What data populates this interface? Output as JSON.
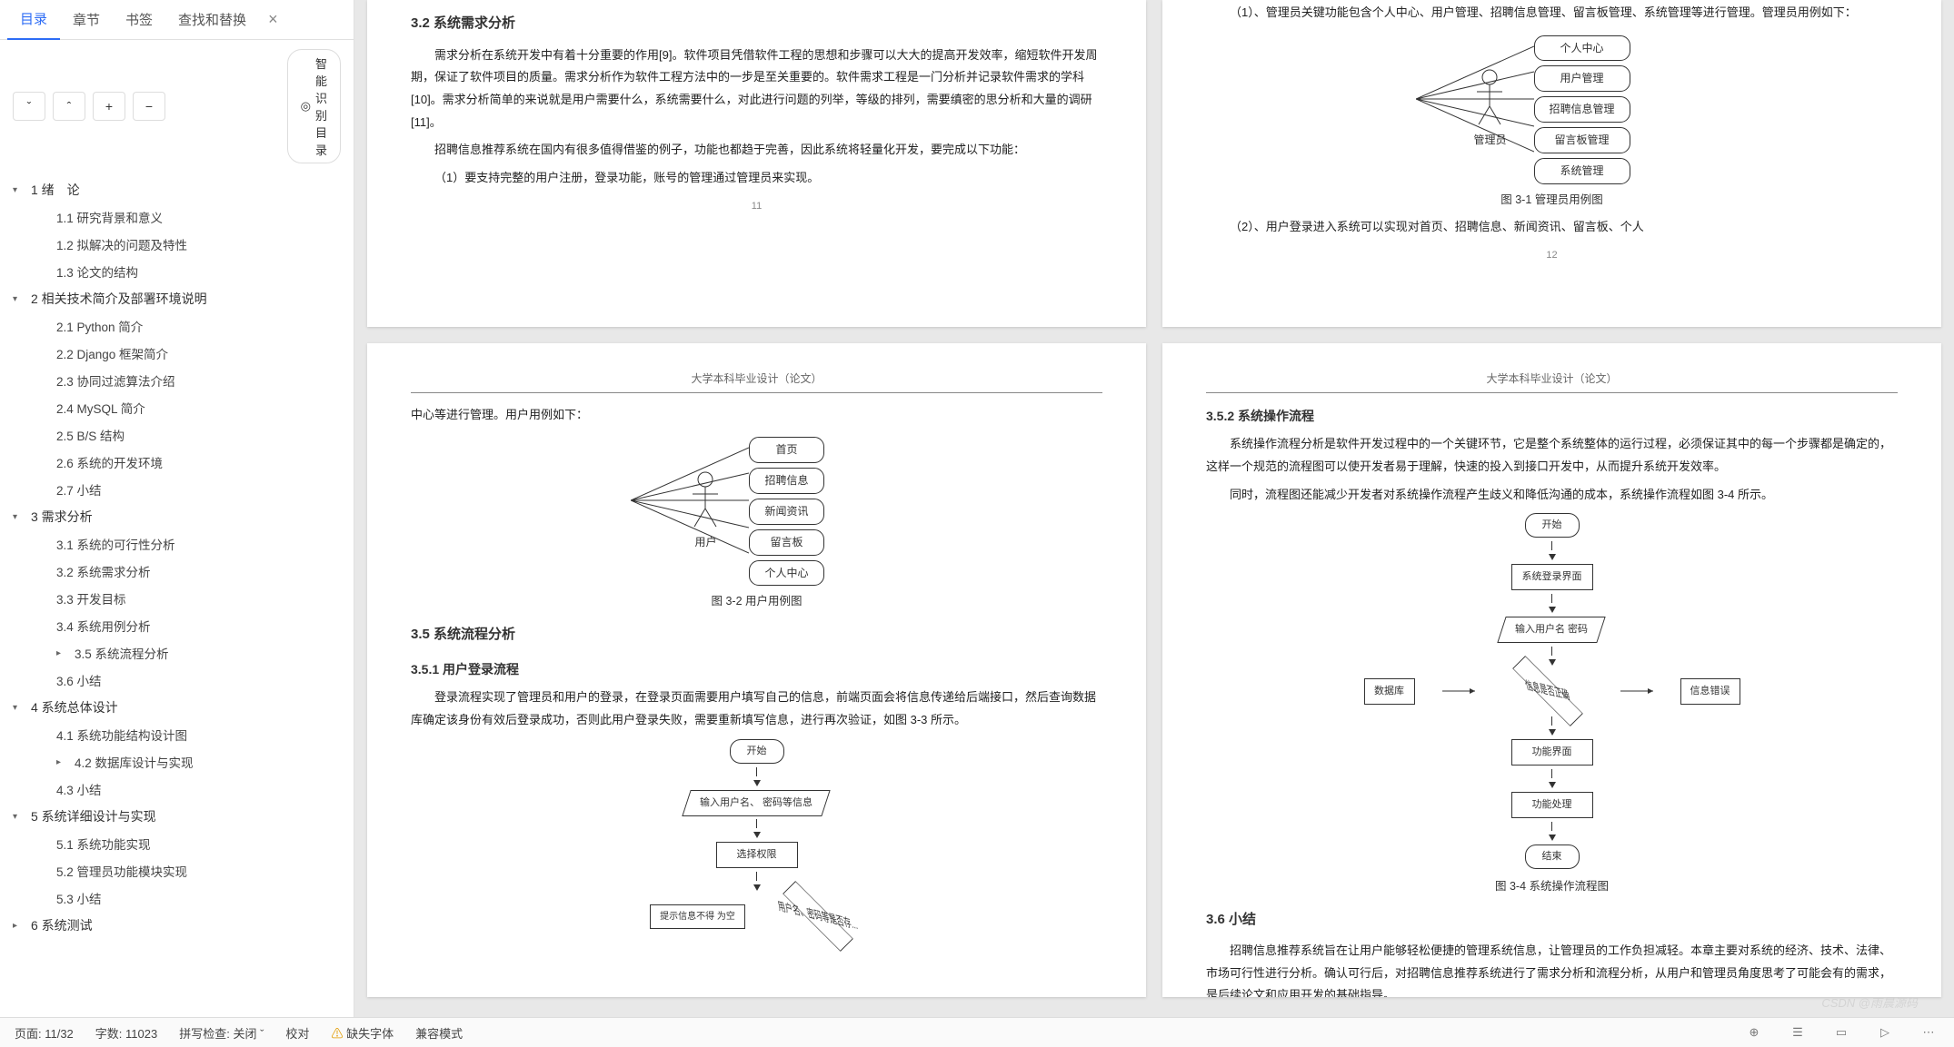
{
  "tabs": {
    "t0": "目录",
    "t1": "章节",
    "t2": "书签",
    "t3": "查找和替换"
  },
  "toolbar": {
    "smart": "智能识别目录"
  },
  "toc": [
    {
      "lvl": 1,
      "exp": true,
      "label": "1 绪　论"
    },
    {
      "lvl": 2,
      "label": "1.1 研究背景和意义"
    },
    {
      "lvl": 2,
      "label": "1.2 拟解决的问题及特性"
    },
    {
      "lvl": 2,
      "label": "1.3 论文的结构"
    },
    {
      "lvl": 1,
      "exp": true,
      "label": "2 相关技术简介及部署环境说明"
    },
    {
      "lvl": 2,
      "label": "2.1 Python 简介"
    },
    {
      "lvl": 2,
      "label": "2.2 Django 框架简介"
    },
    {
      "lvl": 2,
      "label": "2.3 协同过滤算法介绍"
    },
    {
      "lvl": 2,
      "label": "2.4 MySQL 简介"
    },
    {
      "lvl": 2,
      "label": "2.5 B/S 结构"
    },
    {
      "lvl": 2,
      "label": "2.6 系统的开发环境"
    },
    {
      "lvl": 2,
      "label": "2.7 小结"
    },
    {
      "lvl": 1,
      "exp": true,
      "label": "3 需求分析"
    },
    {
      "lvl": 2,
      "label": "3.1 系统的可行性分析"
    },
    {
      "lvl": 2,
      "label": "3.2 系统需求分析"
    },
    {
      "lvl": 2,
      "label": "3.3 开发目标"
    },
    {
      "lvl": 2,
      "label": "3.4 系统用例分析"
    },
    {
      "lvl": 2,
      "exp": false,
      "label": "3.5 系统流程分析"
    },
    {
      "lvl": 2,
      "label": "3.6 小结"
    },
    {
      "lvl": 1,
      "exp": true,
      "label": "4 系统总体设计"
    },
    {
      "lvl": 2,
      "label": "4.1 系统功能结构设计图"
    },
    {
      "lvl": 2,
      "exp": false,
      "label": "4.2 数据库设计与实现"
    },
    {
      "lvl": 2,
      "label": "4.3 小结"
    },
    {
      "lvl": 1,
      "exp": true,
      "label": "5 系统详细设计与实现"
    },
    {
      "lvl": 2,
      "label": "5.1 系统功能实现"
    },
    {
      "lvl": 2,
      "label": "5.2 管理员功能模块实现"
    },
    {
      "lvl": 2,
      "label": "5.3 小结"
    },
    {
      "lvl": 1,
      "exp": false,
      "label": "6 系统测试"
    }
  ],
  "pageHeader": "大学本科毕业设计（论文）",
  "p11": {
    "h": "3.2 系统需求分析",
    "para1": "需求分析在系统开发中有着十分重要的作用[9]。软件项目凭借软件工程的思想和步骤可以大大的提高开发效率，缩短软件开发周期，保证了软件项目的质量。需求分析作为软件工程方法中的一步是至关重要的。软件需求工程是一门分析并记录软件需求的学科[10]。需求分析简单的来说就是用户需要什么，系统需要什么，对此进行问题的列举，等级的排列，需要缜密的思分析和大量的调研[11]。",
    "para2": "招聘信息推荐系统在国内有很多值得借鉴的例子，功能也都趋于完善，因此系统将轻量化开发，要完成以下功能：",
    "para3": "（1）要支持完整的用户注册，登录功能，账号的管理通过管理员来实现。",
    "pnum": "11"
  },
  "p12": {
    "para1": "（1）、管理员关键功能包含个人中心、用户管理、招聘信息管理、留言板管理、系统管理等进行管理。管理员用例如下：",
    "actor": "管理员",
    "cases": [
      "个人中心",
      "用户管理",
      "招聘信息管理",
      "留言板管理",
      "系统管理"
    ],
    "figcap": "图 3-1 管理员用例图",
    "para2": "（2）、用户登录进入系统可以实现对首页、招聘信息、新闻资讯、留言板、个人",
    "pnum": "12"
  },
  "p13": {
    "intro": "中心等进行管理。用户用例如下：",
    "actor": "用户",
    "cases": [
      "首页",
      "招聘信息",
      "新闻资讯",
      "留言板",
      "个人中心"
    ],
    "figcap": "图 3-2 用户用例图",
    "h35": "3.5 系统流程分析",
    "h351": "3.5.1 用户登录流程",
    "para": "登录流程实现了管理员和用户的登录，在登录页面需要用户填写自己的信息，前端页面会将信息传递给后端接口，然后查询数据库确定该身份有效后登录成功，否则此用户登录失败，需要重新填写信息，进行再次验证，如图 3-3 所示。",
    "flow": {
      "start": "开始",
      "input": "输入用户名、\n密码等信息",
      "select": "选择权限",
      "check": "用户名、密码等是否存...",
      "left": "提示信息不得\n为空"
    }
  },
  "p14": {
    "h352": "3.5.2 系统操作流程",
    "para1": "系统操作流程分析是软件开发过程中的一个关键环节，它是整个系统整体的运行过程，必须保证其中的每一个步骤都是确定的，这样一个规范的流程图可以使开发者易于理解，快速的投入到接口开发中，从而提升系统开发效率。",
    "para2": "同时，流程图还能减少开发者对系统操作流程产生歧义和降低沟通的成本，系统操作流程如图 3-4 所示。",
    "flow": {
      "start": "开始",
      "login": "系统登录界面",
      "input": "输入用户名\n密码",
      "db": "数据库",
      "check": "信息是否正确",
      "retry": "信息错误",
      "ui": "功能界面",
      "proc": "功能处理",
      "end": "结束"
    },
    "figcap": "图 3-4 系统操作流程图",
    "h36": "3.6 小结",
    "para3": "招聘信息推荐系统旨在让用户能够轻松便捷的管理系统信息，让管理员的工作负担减轻。本章主要对系统的经济、技术、法律、市场可行性进行分析。确认可行后，对招聘信息推荐系统进行了需求分析和流程分析，从用户和管理员角度思考了可能会有的需求，是后续论文和应用开发的基础指导。"
  },
  "status": {
    "page": "页面: 11/32",
    "words": "字数: 11023",
    "spell": "拼写检查: 关闭",
    "proof": "校对",
    "missing": "缺失字体",
    "compat": "兼容模式"
  },
  "watermark": "CSDN @雨晨源码"
}
